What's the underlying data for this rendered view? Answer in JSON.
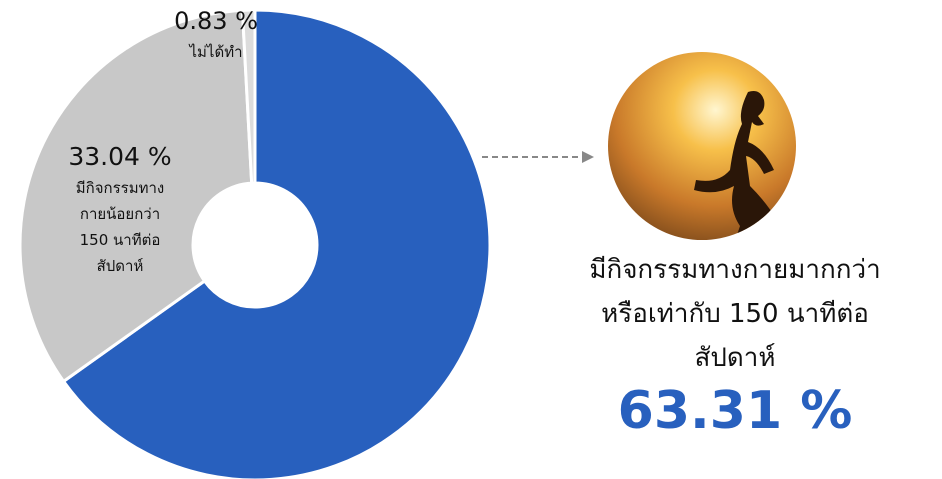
{
  "chart_data": {
    "type": "donut",
    "categories": [
      "มีกิจกรรมทางกายมากกว่า\nหรือเท่ากับ 150 นาทีต่อ\nสัปดาห์",
      "มีกิจกรรมทาง\nกายน้อยกว่า\n150 นาทีต่อ\nสัปดาห์",
      "ไม่ได้ทำ"
    ],
    "values": [
      63.31,
      33.04,
      0.83
    ],
    "value_labels": [
      "63.31 %",
      "33.04 %",
      "0.83 %"
    ],
    "colors": [
      "#2860be",
      "#c8c8c8",
      "#dcdcdc"
    ]
  }
}
